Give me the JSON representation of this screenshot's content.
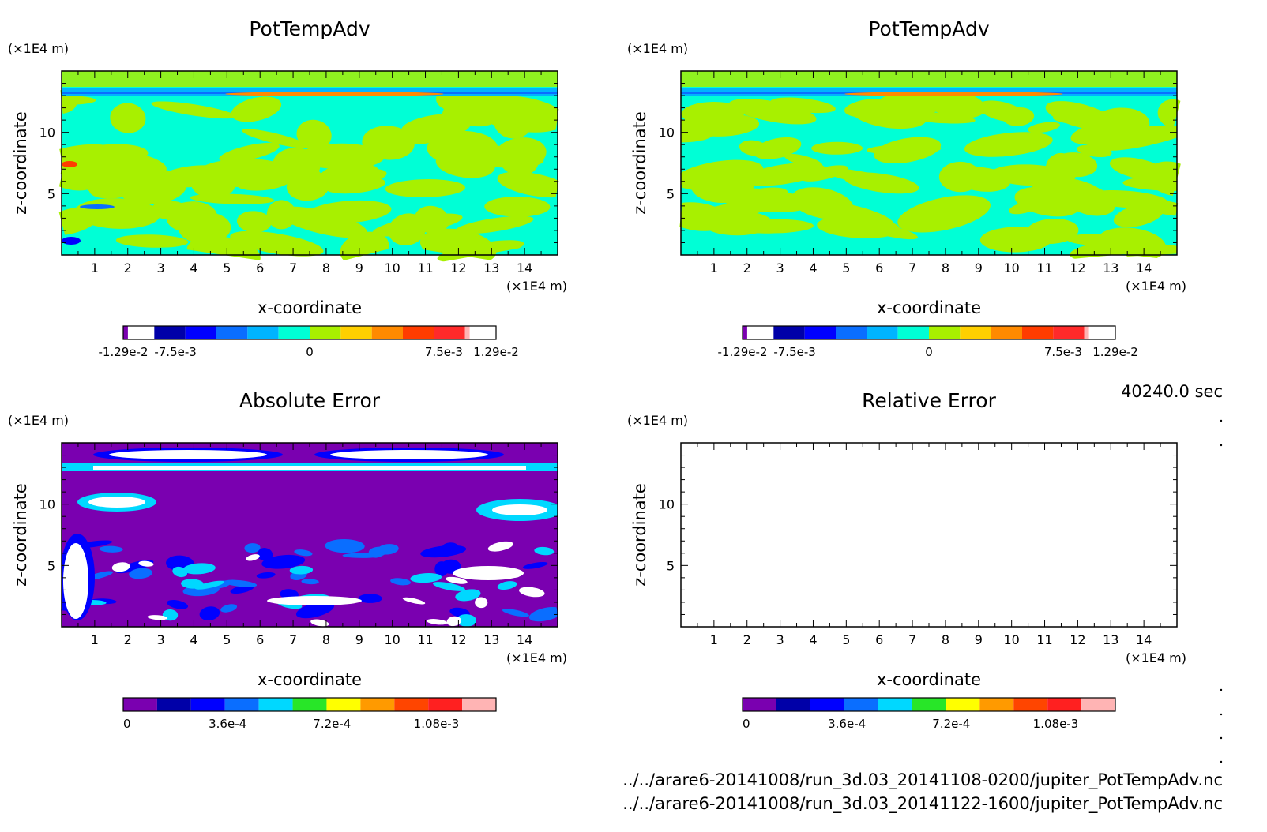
{
  "figure": {
    "time_label": "40240.0 sec",
    "file_1": "../../arare6-20141008/run_3d.03_20141108-0200/jupiter_PotTempAdv.nc",
    "file_2": "../../arare6-20141008/run_3d.03_20141122-1600/jupiter_PotTempAdv.nc"
  },
  "colors": {
    "field_scale": [
      "#7a00b0",
      "#0000a8",
      "#0000ff",
      "#0a6eff",
      "#00b4ff",
      "#00ffd6",
      "#a8f000",
      "#ffd000",
      "#ff8a00",
      "#ff3c00",
      "#ff2a2a",
      "#ffb4b4"
    ],
    "error_scale": [
      "#7a00b0",
      "#0000a8",
      "#0000ff",
      "#0a6eff",
      "#00d8ff",
      "#28e628",
      "#ffff00",
      "#ff9a00",
      "#ff4500",
      "#ff2020",
      "#ffb4b4"
    ],
    "field_background": "#00ffd6",
    "field_patches": "#a8f000",
    "error_background": "#7a00b0"
  },
  "chart_data": [
    {
      "type": "heatmap",
      "id": "panel-1",
      "title": "PotTempAdv",
      "xlabel": "x-coordinate",
      "ylabel": "z-coordinate",
      "x_unit": "(×1E4 m)",
      "y_unit": "(×1E4 m)",
      "xlim": [
        0,
        15
      ],
      "ylim": [
        0,
        15
      ],
      "x_ticks": [
        "1",
        "2",
        "3",
        "4",
        "5",
        "6",
        "7",
        "8",
        "9",
        "10",
        "11",
        "12",
        "13",
        "14"
      ],
      "y_ticks": [
        "5",
        "10"
      ],
      "colorbar_labels": [
        "-1.29e-2",
        "-7.5e-3",
        "0",
        "7.5e-3",
        "1.29e-2"
      ]
    },
    {
      "type": "heatmap",
      "id": "panel-2",
      "title": "PotTempAdv",
      "xlabel": "x-coordinate",
      "ylabel": "z-coordinate",
      "x_unit": "(×1E4 m)",
      "y_unit": "(×1E4 m)",
      "xlim": [
        0,
        15
      ],
      "ylim": [
        0,
        15
      ],
      "x_ticks": [
        "1",
        "2",
        "3",
        "4",
        "5",
        "6",
        "7",
        "8",
        "9",
        "10",
        "11",
        "12",
        "13",
        "14"
      ],
      "y_ticks": [
        "5",
        "10"
      ],
      "colorbar_labels": [
        "-1.29e-2",
        "-7.5e-3",
        "0",
        "7.5e-3",
        "1.29e-2"
      ]
    },
    {
      "type": "heatmap",
      "id": "panel-3",
      "title": "Absolute Error",
      "xlabel": "x-coordinate",
      "ylabel": "z-coordinate",
      "x_unit": "(×1E4 m)",
      "y_unit": "(×1E4 m)",
      "xlim": [
        0,
        15
      ],
      "ylim": [
        0,
        15
      ],
      "x_ticks": [
        "1",
        "2",
        "3",
        "4",
        "5",
        "6",
        "7",
        "8",
        "9",
        "10",
        "11",
        "12",
        "13",
        "14"
      ],
      "y_ticks": [
        "5",
        "10"
      ],
      "colorbar_labels": [
        "0",
        "3.6e-4",
        "7.2e-4",
        "1.08e-3"
      ]
    },
    {
      "type": "heatmap",
      "id": "panel-4",
      "title": "Relative Error",
      "xlabel": "x-coordinate",
      "ylabel": "z-coordinate",
      "x_unit": "(×1E4 m)",
      "y_unit": "(×1E4 m)",
      "xlim": [
        0,
        15
      ],
      "ylim": [
        0,
        15
      ],
      "x_ticks": [
        "1",
        "2",
        "3",
        "4",
        "5",
        "6",
        "7",
        "8",
        "9",
        "10",
        "11",
        "12",
        "13",
        "14"
      ],
      "y_ticks": [
        "5",
        "10"
      ],
      "colorbar_labels": [
        "0",
        "3.6e-4",
        "7.2e-4",
        "1.08e-3"
      ]
    }
  ]
}
